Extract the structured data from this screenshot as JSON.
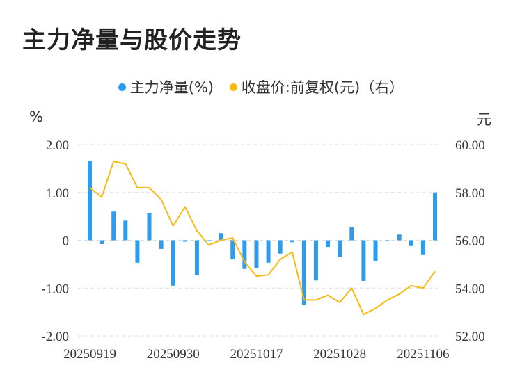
{
  "title": "主力净量与股价走势",
  "legend": {
    "net": "主力净量(%)",
    "price": "收盘价:前复权(元)（右）"
  },
  "units": {
    "left": "%",
    "right": "元"
  },
  "colors": {
    "bar": "#2f9bea",
    "line": "#f5b914",
    "grid": "#dddddd"
  },
  "chart_data": {
    "type": "bar+line",
    "x_tick_labels": [
      "20250919",
      "20250930",
      "20251017",
      "20251028",
      "20251106"
    ],
    "x_tick_indices": [
      0,
      7,
      14,
      21,
      28
    ],
    "y_left": {
      "min": -2,
      "max": 2,
      "ticks": [
        -2,
        -1,
        0,
        1,
        2
      ],
      "tick_labels": [
        "-2.00",
        "-1.00",
        "0",
        "1.00",
        "2.00"
      ]
    },
    "y_right": {
      "min": 52,
      "max": 60,
      "ticks": [
        52,
        54,
        56,
        58,
        60
      ],
      "tick_labels": [
        "52.00",
        "54.00",
        "56.00",
        "58.00",
        "60.00"
      ]
    },
    "series": [
      {
        "name": "主力净量(%)",
        "type": "bar",
        "axis": "left",
        "values": [
          1.65,
          -0.08,
          0.6,
          0.41,
          -0.47,
          0.57,
          -0.18,
          -0.95,
          -0.03,
          -0.73,
          -0.02,
          0.15,
          -0.4,
          -0.6,
          -0.58,
          -0.47,
          -0.28,
          -0.04,
          -1.36,
          -0.84,
          -0.14,
          -0.35,
          0.27,
          -0.85,
          -0.44,
          -0.02,
          0.12,
          -0.12,
          -0.31,
          1.0
        ]
      },
      {
        "name": "收盘价:前复权(元)（右）",
        "type": "line",
        "axis": "right",
        "values": [
          58.2,
          57.8,
          59.3,
          59.2,
          58.2,
          58.2,
          57.7,
          56.6,
          57.4,
          56.4,
          55.8,
          56.0,
          56.1,
          55.1,
          54.5,
          54.55,
          55.2,
          55.5,
          53.5,
          53.5,
          53.7,
          53.4,
          54.0,
          52.9,
          53.15,
          53.5,
          53.75,
          54.1,
          54.0,
          54.7
        ]
      }
    ]
  }
}
